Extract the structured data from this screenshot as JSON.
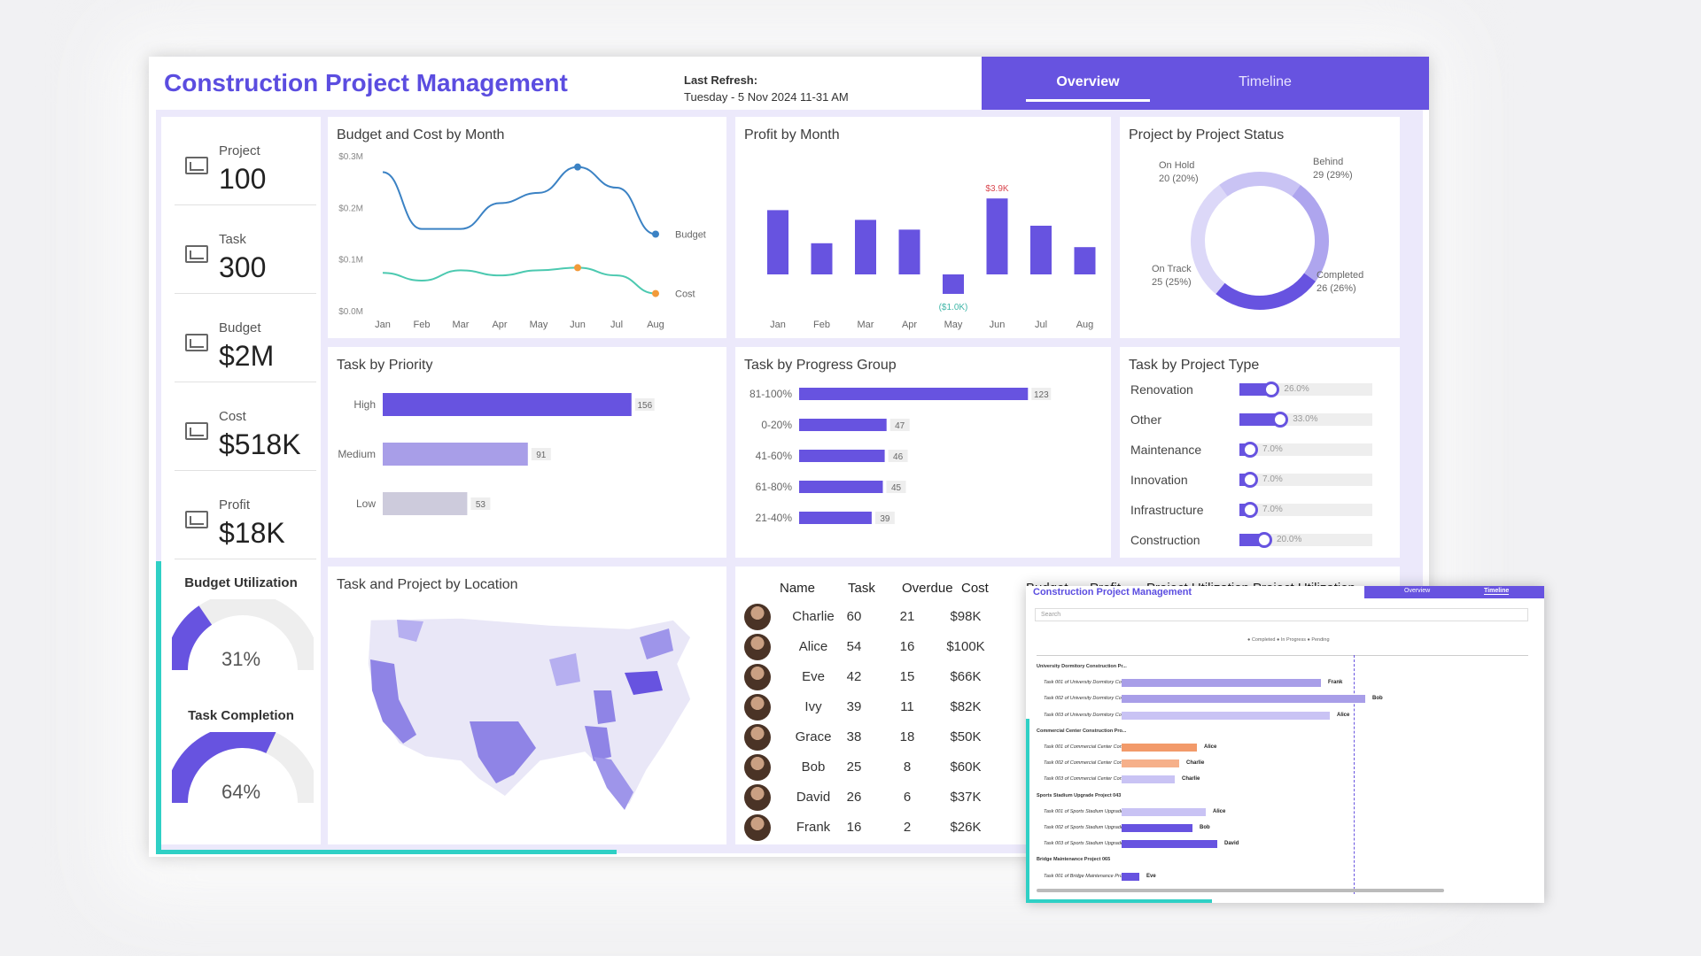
{
  "header": {
    "title": "Construction Project Management",
    "refresh_label": "Last Refresh:",
    "refresh_value": "Tuesday - 5 Nov 2024 11-31 AM",
    "tabs": [
      "Overview",
      "Timeline"
    ]
  },
  "kpis": [
    {
      "label": "Project",
      "value": "100",
      "icon": "chart-icon"
    },
    {
      "label": "Task",
      "value": "300",
      "icon": "chart-icon"
    },
    {
      "label": "Budget",
      "value": "$2M",
      "icon": "calculator-icon"
    },
    {
      "label": "Cost",
      "value": "$518K",
      "icon": "invoice-icon"
    },
    {
      "label": "Profit",
      "value": "$18K",
      "icon": "growth-icon"
    }
  ],
  "gauges": [
    {
      "title": "Budget Utilization",
      "value": "31%",
      "fraction": 0.31
    },
    {
      "title": "Task Completion",
      "value": "64%",
      "fraction": 0.64
    }
  ],
  "colors": {
    "accent": "#6753e0",
    "teal": "#2fd0c5",
    "budget": "#3b82c4",
    "cost": "#4cc9b0"
  },
  "budget_chart": {
    "title": "Budget and Cost by Month",
    "yticks": [
      "$0.3M",
      "$0.2M",
      "$0.1M",
      "$0.0M"
    ],
    "months": [
      "Jan",
      "Feb",
      "Mar",
      "Apr",
      "May",
      "Jun",
      "Jul",
      "Aug"
    ],
    "series_labels": [
      "Budget",
      "Cost"
    ]
  },
  "profit_chart": {
    "title": "Profit by Month",
    "max_label": "$3.9K",
    "min_label": "($1.0K)",
    "months": [
      "Jan",
      "Feb",
      "Mar",
      "Apr",
      "May",
      "Jun",
      "Jul",
      "Aug"
    ]
  },
  "status_chart": {
    "title": "Project by Project Status",
    "labels": [
      {
        "name": "On Hold",
        "value": "20 (20%)"
      },
      {
        "name": "Behind",
        "value": "29 (29%)"
      },
      {
        "name": "On Track",
        "value": "25 (25%)"
      },
      {
        "name": "Completed",
        "value": "26 (26%)"
      }
    ]
  },
  "priority_chart": {
    "title": "Task by Priority"
  },
  "progress_chart": {
    "title": "Task by Progress Group"
  },
  "type_chart": {
    "title": "Task by Project Type",
    "rows": [
      {
        "name": "Renovation",
        "pct": "26.0%",
        "value": 26
      },
      {
        "name": "Other",
        "pct": "33.0%",
        "value": 33
      },
      {
        "name": "Maintenance",
        "pct": "7.0%",
        "value": 7
      },
      {
        "name": "Innovation",
        "pct": "7.0%",
        "value": 7
      },
      {
        "name": "Infrastructure",
        "pct": "7.0%",
        "value": 7
      },
      {
        "name": "Construction",
        "pct": "20.0%",
        "value": 20
      }
    ]
  },
  "map": {
    "title": "Task and Project by Location"
  },
  "people_table": {
    "headers": [
      "Name",
      "Task",
      "Overdue",
      "Cost",
      "Budget",
      "Profit",
      "Project Utilization",
      "Project Utilization"
    ],
    "rows": [
      [
        "Charlie",
        "60",
        "21",
        "$98K"
      ],
      [
        "Alice",
        "54",
        "16",
        "$100K"
      ],
      [
        "Eve",
        "42",
        "15",
        "$66K"
      ],
      [
        "Ivy",
        "39",
        "11",
        "$82K"
      ],
      [
        "Grace",
        "38",
        "18",
        "$50K"
      ],
      [
        "Bob",
        "25",
        "8",
        "$60K"
      ],
      [
        "David",
        "26",
        "6",
        "$37K"
      ],
      [
        "Frank",
        "16",
        "2",
        "$26K"
      ]
    ]
  },
  "overlay": {
    "title": "Construction Project Management",
    "tabs": [
      "Overview",
      "Timeline"
    ],
    "search_placeholder": "Search",
    "legend": "● Completed ● In Progress ● Pending",
    "rows": [
      {
        "label": "University Dormitory Construction Pr...",
        "group": true
      },
      {
        "label": "Task 001 of University Dormitory Con...",
        "owner": "Frank"
      },
      {
        "label": "Task 002 of University Dormitory Con...",
        "owner": "Bob"
      },
      {
        "label": "Task 003 of University Dormitory Con...",
        "owner": "Alice"
      },
      {
        "label": "Commercial Center Construction Pro...",
        "group": true
      },
      {
        "label": "Task 001 of Commercial Center Cons...",
        "owner": "Alice"
      },
      {
        "label": "Task 002 of Commercial Center Cons...",
        "owner": "Charlie"
      },
      {
        "label": "Task 003 of Commercial Center Cons...",
        "owner": "Charlie"
      },
      {
        "label": "Sports Stadium Upgrade Project 043",
        "group": true
      },
      {
        "label": "Task 001 of Sports Stadium Upgrade ...",
        "owner": "Alice"
      },
      {
        "label": "Task 002 of Sports Stadium Upgrade ...",
        "owner": "Bob"
      },
      {
        "label": "Task 003 of Sports Stadium Upgrade ...",
        "owner": "David"
      },
      {
        "label": "Bridge Maintenance Project 065",
        "group": true
      },
      {
        "label": "Task 001 of Bridge Maintenance Proj...",
        "owner": "Eve"
      }
    ]
  },
  "chart_data": [
    {
      "type": "line",
      "title": "Budget and Cost by Month",
      "x": [
        "Jan",
        "Feb",
        "Mar",
        "Apr",
        "May",
        "Jun",
        "Jul",
        "Aug"
      ],
      "series": [
        {
          "name": "Budget",
          "values": [
            0.27,
            0.16,
            0.16,
            0.21,
            0.23,
            0.28,
            0.24,
            0.15
          ]
        },
        {
          "name": "Cost",
          "values": [
            0.075,
            0.06,
            0.08,
            0.07,
            0.08,
            0.085,
            0.07,
            0.035
          ]
        }
      ],
      "ylim": [
        0,
        0.3
      ]
    },
    {
      "type": "bar",
      "title": "Profit by Month",
      "categories": [
        "Jan",
        "Feb",
        "Mar",
        "Apr",
        "May",
        "Jun",
        "Jul",
        "Aug"
      ],
      "values": [
        3.3,
        1.6,
        2.8,
        2.3,
        -1.0,
        3.9,
        2.5,
        1.4
      ]
    },
    {
      "type": "pie",
      "title": "Project by Project Status",
      "categories": [
        "Completed",
        "Behind",
        "On Hold",
        "On Track"
      ],
      "values": [
        26,
        29,
        20,
        25
      ]
    },
    {
      "type": "bar",
      "title": "Task by Priority",
      "categories": [
        "High",
        "Medium",
        "Low"
      ],
      "values": [
        156,
        91,
        53
      ]
    },
    {
      "type": "bar",
      "title": "Task by Progress Group",
      "categories": [
        "81-100%",
        "0-20%",
        "41-60%",
        "61-80%",
        "21-40%"
      ],
      "values": [
        123,
        47,
        46,
        45,
        39
      ]
    }
  ]
}
